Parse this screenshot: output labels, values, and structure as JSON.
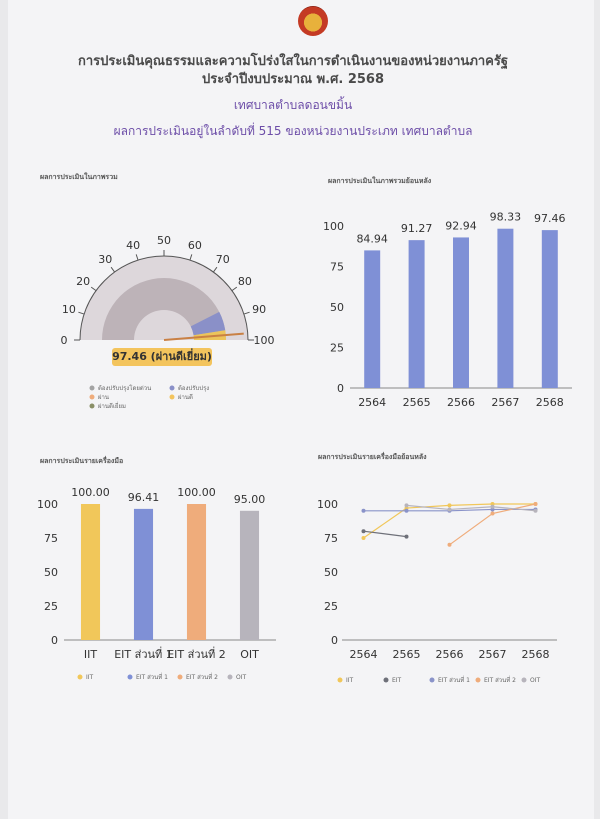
{
  "header": {
    "title_line1": "การประเมินคุณธรรมและความโปร่งใสในการดำเนินงานของหน่วยงานภาครัฐ",
    "title_line2": "ประจำปีงบประมาณ พ.ศ. 2568",
    "agency": "เทศบาลตำบลดอนขมิ้น",
    "ranking": "ผลการประเมินอยู่ในลำดับที่ 515 ของหน่วยงานประเภท เทศบาลตำบล"
  },
  "sections": {
    "overall": "ผลการประเมินในภาพรวม",
    "history": "ผลการประเมินในภาพรวมย้อนหลัง",
    "by_tool": "ผลการประเมินรายเครื่องมือ",
    "tool_history": "ผลการประเมินรายเครื่องมือย้อนหลัง"
  },
  "gauge": {
    "badge_text": "97.46 (ผ่านดีเยี่ยม)",
    "legend": [
      "ต้องปรับปรุงโดยด่วน",
      "ต้องปรับปรุง",
      "ผ่าน",
      "ผ่านดี",
      "ผ่านดีเยี่ยม"
    ],
    "colors": {
      "track": "#bdb3b8",
      "band1": "#8a90c8",
      "band2": "#ecc45b",
      "needle": "#c98044",
      "tick": "#555555",
      "leg_grey": "#a3a3a3",
      "leg_green": "#8a8f67"
    }
  },
  "chart_data": [
    {
      "type": "gauge",
      "value": 97.46,
      "range": [
        0,
        100
      ],
      "ticks": [
        "0",
        "10",
        "20",
        "30",
        "40",
        "50",
        "60",
        "70",
        "80",
        "90",
        "100"
      ],
      "bands": [
        {
          "label": "ต้องปรับปรุงโดยด่วน",
          "from": 0,
          "to": 50
        },
        {
          "label": "ต้องปรับปรุง",
          "from": 50,
          "to": 85
        },
        {
          "label": "ผ่าน",
          "from": 85,
          "to": 95
        },
        {
          "label": "ผ่านดีเยี่ยม",
          "from": 95,
          "to": 100
        }
      ]
    },
    {
      "type": "bar",
      "categories": [
        "2564",
        "2565",
        "2566",
        "2567",
        "2568"
      ],
      "values": [
        84.94,
        91.27,
        92.94,
        98.33,
        97.46
      ],
      "value_labels": [
        "84.94",
        "91.27",
        "92.94",
        "98.33",
        "97.46"
      ],
      "yticks": [
        "0",
        "25",
        "50",
        "75",
        "100"
      ],
      "ylim": [
        0,
        100
      ],
      "color": "#7f90d6"
    },
    {
      "type": "bar",
      "categories": [
        "IIT",
        "EIT ส่วนที่ 1",
        "EIT ส่วนที่ 2",
        "OIT"
      ],
      "values": [
        100.0,
        96.41,
        100.0,
        95.0
      ],
      "value_labels": [
        "100.00",
        "96.41",
        "100.00",
        "95.00"
      ],
      "colors": [
        "#f1c75a",
        "#7f90d6",
        "#efac7b",
        "#b7b4bc"
      ],
      "yticks": [
        "0",
        "25",
        "50",
        "75",
        "100"
      ],
      "ylim": [
        0,
        100
      ],
      "legend": [
        "IIT",
        "EIT ส่วนที่ 1",
        "EIT ส่วนที่ 2",
        "OIT"
      ]
    },
    {
      "type": "line",
      "x": [
        "2564",
        "2565",
        "2566",
        "2567",
        "2568"
      ],
      "yticks": [
        "0",
        "25",
        "50",
        "75",
        "100"
      ],
      "ylim": [
        0,
        100
      ],
      "series": [
        {
          "name": "IIT",
          "color": "#f1c75a",
          "values": [
            75,
            97,
            99,
            100,
            100
          ]
        },
        {
          "name": "EIT",
          "color": "#6e7079",
          "values": [
            80,
            76,
            null,
            null,
            null
          ]
        },
        {
          "name": "EIT ส่วนที่ 1",
          "color": "#8a93c9",
          "values": [
            95,
            95,
            95,
            96,
            96
          ]
        },
        {
          "name": "EIT ส่วนที่ 2",
          "color": "#efac7b",
          "values": [
            null,
            null,
            70,
            93,
            100
          ]
        },
        {
          "name": "OIT",
          "color": "#b7b4bc",
          "values": [
            null,
            99,
            96,
            98,
            95
          ]
        }
      ]
    }
  ]
}
